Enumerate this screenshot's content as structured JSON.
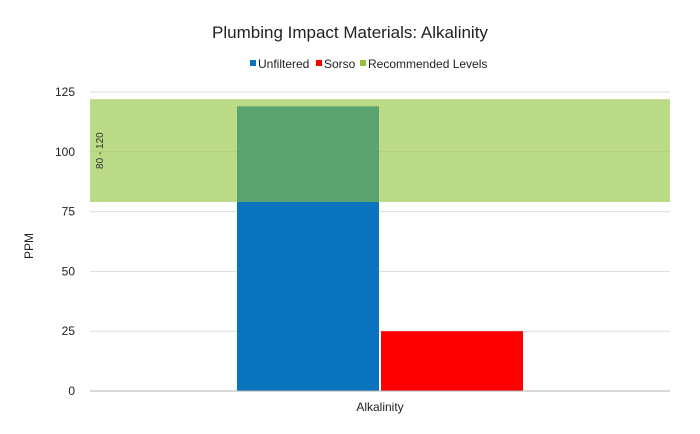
{
  "chart_data": {
    "type": "bar",
    "title": "Plumbing Impact Materials: Alkalinity",
    "xlabel": "",
    "ylabel": "PPM",
    "categories": [
      "Alkalinity"
    ],
    "series": [
      {
        "name": "Unfiltered",
        "values": [
          119
        ],
        "color": "#0a73bd"
      },
      {
        "name": "Sorso",
        "values": [
          25
        ],
        "color": "#fe0000"
      }
    ],
    "recommended": {
      "name": "Recommended Levels",
      "range": [
        79,
        122
      ],
      "label": "80 - 120",
      "color": "#8fc33a"
    },
    "ylim": [
      0,
      125
    ],
    "yticks": [
      "0",
      "25",
      "50",
      "75",
      "100",
      "125"
    ],
    "grid": true,
    "legend": "top-center"
  }
}
